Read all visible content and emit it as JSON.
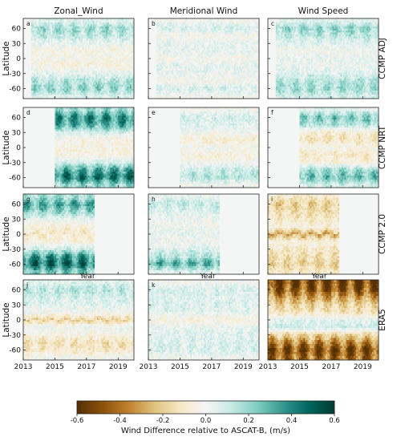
{
  "chart_data": {
    "type": "heatmap",
    "columns": [
      "Zonal_Wind",
      "Meridional Wind",
      "Wind Speed"
    ],
    "rows": [
      "CCMP ADJ",
      "CCMP NRT",
      "CCMP 2.0",
      "ERA5"
    ],
    "panel_letters": [
      "a",
      "b",
      "c",
      "d",
      "e",
      "f",
      "g",
      "h",
      "i",
      "j",
      "k",
      "l"
    ],
    "ylabel": "Latitude",
    "x_axis": {
      "range": [
        2013,
        2020
      ],
      "ticks": [
        "2013",
        "2015",
        "2017",
        "2019"
      ]
    },
    "y_axis": {
      "range": [
        -80,
        80
      ],
      "ticks": [
        "60",
        "30",
        "0",
        "-30",
        "-60"
      ]
    },
    "partially_visible_label": "Year",
    "colorbar": {
      "label": "Wind Difference relative to ASCAT-B, (m/s)",
      "range": [
        -0.6,
        0.6
      ],
      "ticks": [
        "-0.6",
        "-0.4",
        "-0.2",
        "0.0",
        "0.2",
        "0.4",
        "0.6"
      ],
      "colors": [
        "#543005",
        "#8c510a",
        "#bf812d",
        "#dfc27d",
        "#f6e8c3",
        "#f5f5f5",
        "#c7eae5",
        "#80cdc1",
        "#35978f",
        "#01665e",
        "#003c30"
      ]
    },
    "data_start_year": {
      "CCMP ADJ": 2013.5,
      "CCMP NRT": 2015.0,
      "CCMP 2.0": 2013.0,
      "ERA5": 2013.0
    },
    "data_end_year": {
      "CCMP ADJ": 2020.0,
      "CCMP NRT": 2020.0,
      "CCMP 2.0": 2017.5,
      "ERA5": 2020.0
    },
    "zonal_profiles_mps": {
      "latitude": [
        75,
        60,
        45,
        30,
        15,
        0,
        -15,
        -30,
        -45,
        -60,
        -75
      ],
      "panels": {
        "a": [
          0.06,
          0.18,
          0.12,
          0.03,
          -0.04,
          -0.02,
          -0.05,
          0.04,
          0.14,
          0.2,
          0.06
        ],
        "b": [
          0.0,
          0.08,
          -0.02,
          0.03,
          0.04,
          -0.02,
          0.05,
          0.02,
          -0.02,
          0.08,
          0.0
        ],
        "c": [
          0.05,
          0.2,
          0.12,
          0.05,
          0.0,
          0.03,
          0.02,
          0.06,
          0.14,
          0.18,
          0.08
        ],
        "d": [
          0.18,
          0.38,
          0.3,
          0.08,
          -0.05,
          -0.04,
          -0.05,
          0.08,
          0.32,
          0.42,
          0.18
        ],
        "e": [
          0.0,
          0.08,
          0.05,
          0.0,
          -0.08,
          0.0,
          -0.06,
          0.0,
          0.1,
          0.14,
          0.0
        ],
        "f": [
          0.05,
          0.24,
          0.15,
          -0.08,
          -0.12,
          -0.02,
          -0.1,
          -0.05,
          0.18,
          0.26,
          0.08
        ],
        "g": [
          0.15,
          0.32,
          0.2,
          0.03,
          -0.06,
          -0.1,
          -0.05,
          0.1,
          0.35,
          0.45,
          0.22
        ],
        "h": [
          0.02,
          0.12,
          0.06,
          0.02,
          0.0,
          0.04,
          0.0,
          0.06,
          0.15,
          0.3,
          0.05
        ],
        "i": [
          -0.1,
          -0.2,
          -0.15,
          -0.1,
          -0.05,
          -0.28,
          -0.05,
          -0.1,
          -0.14,
          -0.18,
          -0.1
        ],
        "j": [
          0.05,
          0.14,
          0.08,
          0.05,
          0.0,
          -0.18,
          0.02,
          -0.04,
          -0.14,
          -0.1,
          0.0
        ],
        "k": [
          0.0,
          0.08,
          0.05,
          0.06,
          0.05,
          -0.06,
          0.04,
          0.05,
          0.06,
          0.08,
          0.0
        ],
        "l": [
          -0.5,
          -0.45,
          -0.3,
          -0.18,
          -0.12,
          0.05,
          0.1,
          -0.18,
          -0.35,
          -0.5,
          -0.4
        ]
      }
    }
  }
}
